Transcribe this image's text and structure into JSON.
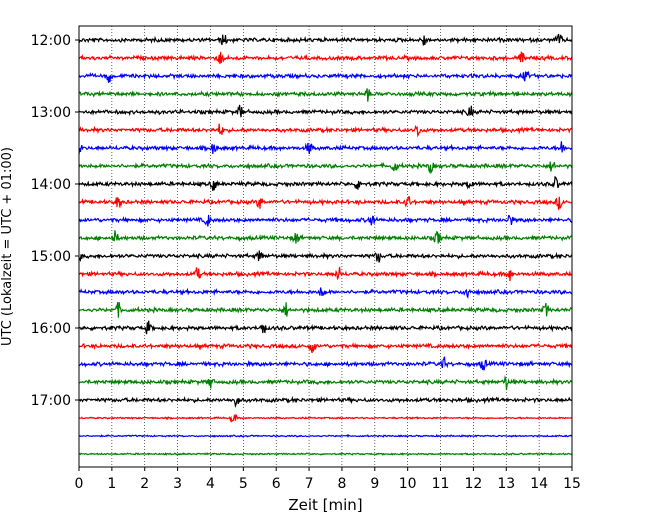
{
  "chart_data": {
    "type": "line",
    "title": "",
    "xlabel": "Zeit  [min]",
    "ylabel": "UTC (Lokalzeit = UTC + 01:00)",
    "xlim": [
      0,
      15
    ],
    "xticks": [
      "0",
      "1",
      "2",
      "3",
      "4",
      "5",
      "6",
      "7",
      "8",
      "9",
      "10",
      "11",
      "12",
      "13",
      "14",
      "15"
    ],
    "yticks": [
      "12:00",
      "13:00",
      "14:00",
      "15:00",
      "16:00",
      "17:00"
    ],
    "grid": "vertical dotted at each minute",
    "trace_interval_min": 15,
    "colors": [
      "#000000",
      "#ff0000",
      "#0000ff",
      "#008000"
    ],
    "traces": [
      {
        "start": "12:00",
        "color": "#000000",
        "events": [
          4.4,
          10.5,
          14.6
        ]
      },
      {
        "start": "12:15",
        "color": "#ff0000",
        "events": [
          4.3,
          13.5
        ]
      },
      {
        "start": "12:30",
        "color": "#0000ff",
        "events": [
          0.9,
          13.6
        ]
      },
      {
        "start": "12:45",
        "color": "#008000",
        "events": [
          8.8
        ]
      },
      {
        "start": "13:00",
        "color": "#000000",
        "events": [
          4.9,
          11.9
        ]
      },
      {
        "start": "13:15",
        "color": "#ff0000",
        "events": [
          4.3,
          10.3
        ]
      },
      {
        "start": "13:30",
        "color": "#0000ff",
        "events": [
          0.0,
          4.1,
          7.0,
          14.7
        ]
      },
      {
        "start": "13:45",
        "color": "#008000",
        "events": [
          9.6,
          10.7,
          14.4
        ]
      },
      {
        "start": "14:00",
        "color": "#000000",
        "events": [
          4.1,
          8.5,
          11.9,
          14.5
        ]
      },
      {
        "start": "14:15",
        "color": "#ff0000",
        "events": [
          1.2,
          5.5,
          10.0,
          14.6
        ]
      },
      {
        "start": "14:30",
        "color": "#0000ff",
        "events": [
          3.9,
          8.9,
          13.1
        ]
      },
      {
        "start": "14:45",
        "color": "#008000",
        "events": [
          1.1,
          6.6,
          10.9
        ]
      },
      {
        "start": "15:00",
        "color": "#000000",
        "events": [
          0.0,
          5.5,
          9.1
        ]
      },
      {
        "start": "15:15",
        "color": "#ff0000",
        "events": [
          3.6,
          7.9,
          13.1
        ]
      },
      {
        "start": "15:30",
        "color": "#0000ff",
        "events": [
          7.4,
          11.8
        ]
      },
      {
        "start": "15:45",
        "color": "#008000",
        "events": [
          1.2,
          6.3,
          14.2
        ]
      },
      {
        "start": "16:00",
        "color": "#000000",
        "events": [
          2.1,
          5.6
        ]
      },
      {
        "start": "16:15",
        "color": "#ff0000",
        "events": [
          7.1
        ]
      },
      {
        "start": "16:30",
        "color": "#0000ff",
        "events": [
          11.1,
          12.3
        ]
      },
      {
        "start": "16:45",
        "color": "#008000",
        "events": [
          4.0,
          13.0
        ]
      },
      {
        "start": "17:00",
        "color": "#000000",
        "events": [
          4.8
        ]
      },
      {
        "start": "17:15",
        "color": "#ff0000",
        "events": [
          4.7
        ]
      },
      {
        "start": "17:30",
        "color": "#0000ff",
        "events": []
      },
      {
        "start": "17:45",
        "color": "#008000",
        "events": []
      }
    ]
  }
}
